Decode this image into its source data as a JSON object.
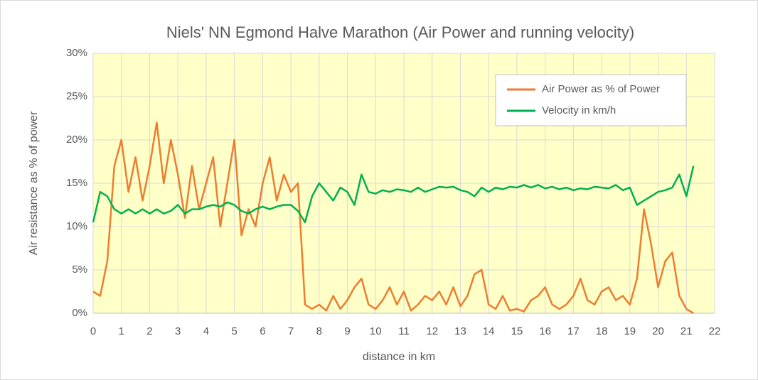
{
  "chart_data": {
    "type": "line",
    "title": "Niels' NN Egmond Halve Marathon (Air Power and running velocity)",
    "x_label": "distance in km",
    "y_label": "Air resistance as % of power",
    "x": [
      0,
      0.25,
      0.5,
      0.75,
      1,
      1.25,
      1.5,
      1.75,
      2,
      2.25,
      2.5,
      2.75,
      3,
      3.25,
      3.5,
      3.75,
      4,
      4.25,
      4.5,
      4.75,
      5,
      5.25,
      5.5,
      5.75,
      6,
      6.25,
      6.5,
      6.75,
      7,
      7.25,
      7.5,
      7.75,
      8,
      8.25,
      8.5,
      8.75,
      9,
      9.25,
      9.5,
      9.75,
      10,
      10.25,
      10.5,
      10.75,
      11,
      11.25,
      11.5,
      11.75,
      12,
      12.25,
      12.5,
      12.75,
      13,
      13.25,
      13.5,
      13.75,
      14,
      14.25,
      14.5,
      14.75,
      15,
      15.25,
      15.5,
      15.75,
      16,
      16.25,
      16.5,
      16.75,
      17,
      17.25,
      17.5,
      17.75,
      18,
      18.25,
      18.5,
      18.75,
      19,
      19.25,
      19.5,
      19.75,
      20,
      20.25,
      20.5,
      20.75,
      21,
      21.25
    ],
    "series": [
      {
        "name": "Air Power as % of Power",
        "color": "#ed7d31",
        "values": [
          2.5,
          2,
          6,
          17,
          20,
          14,
          18,
          13,
          17,
          22,
          15,
          20,
          16,
          11,
          17,
          12,
          15,
          18,
          10,
          15,
          20,
          9,
          12,
          10,
          15,
          18,
          13,
          16,
          14,
          15,
          1,
          0.5,
          1,
          0.3,
          2,
          0.5,
          1.5,
          3,
          4,
          1,
          0.5,
          1.5,
          3,
          1,
          2.5,
          0.3,
          1,
          2,
          1.5,
          2.5,
          1,
          3,
          0.8,
          2,
          4.5,
          5,
          1,
          0.5,
          2,
          0.3,
          0.5,
          0.2,
          1.5,
          2,
          3,
          1,
          0.5,
          1,
          2,
          4,
          1.5,
          1,
          2.5,
          3,
          1.5,
          2,
          1,
          4,
          12,
          8,
          3,
          6,
          7,
          2,
          0.5,
          0
        ]
      },
      {
        "name": "Velocity in km/h",
        "color": "#00b050",
        "values": [
          10.5,
          14,
          13.5,
          12,
          11.5,
          12,
          11.5,
          12,
          11.5,
          12,
          11.5,
          11.8,
          12.5,
          11.5,
          12,
          12,
          12.3,
          12.5,
          12.3,
          12.8,
          12.5,
          11.8,
          11.5,
          12,
          12.3,
          12,
          12.3,
          12.5,
          12.5,
          11.8,
          10.5,
          13.5,
          15,
          14,
          13,
          14.5,
          14,
          12.5,
          16,
          14,
          13.8,
          14.2,
          14,
          14.3,
          14.2,
          14,
          14.5,
          14,
          14.3,
          14.6,
          14.5,
          14.6,
          14.2,
          14,
          13.5,
          14.5,
          14,
          14.5,
          14.3,
          14.6,
          14.5,
          14.8,
          14.5,
          14.8,
          14.4,
          14.6,
          14.3,
          14.5,
          14.2,
          14.4,
          14.3,
          14.6,
          14.5,
          14.4,
          14.8,
          14.2,
          14.5,
          12.5,
          13,
          13.5,
          14,
          14.2,
          14.5,
          16,
          13.5,
          17
        ]
      }
    ],
    "xlim": [
      0,
      22
    ],
    "xticks": [
      0,
      1,
      2,
      3,
      4,
      5,
      6,
      7,
      8,
      9,
      10,
      11,
      12,
      13,
      14,
      15,
      16,
      17,
      18,
      19,
      20,
      21,
      22
    ],
    "ylim": [
      0,
      30
    ],
    "yticks": [
      {
        "value": 0,
        "label": "0%"
      },
      {
        "value": 5,
        "label": "5%"
      },
      {
        "value": 10,
        "label": "10%"
      },
      {
        "value": 15,
        "label": "15%"
      },
      {
        "value": 20,
        "label": "20%"
      },
      {
        "value": 25,
        "label": "25%"
      },
      {
        "value": 30,
        "label": "30%"
      }
    ],
    "grid": true,
    "legend": "upper right"
  }
}
